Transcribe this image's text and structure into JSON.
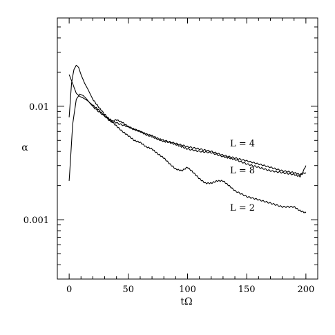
{
  "chart_data": {
    "type": "line",
    "title": "",
    "xlabel": "tΩ",
    "ylabel": "α",
    "x_scale": "linear",
    "y_scale": "log",
    "xlim": [
      -10,
      210
    ],
    "ylim": [
      0.0003,
      0.06
    ],
    "x_ticks": [
      {
        "value": 0,
        "label": "0"
      },
      {
        "value": 50,
        "label": "50"
      },
      {
        "value": 100,
        "label": "100"
      },
      {
        "value": 150,
        "label": "150"
      },
      {
        "value": 200,
        "label": "200"
      }
    ],
    "y_ticks": [
      {
        "value": 0.01,
        "label": "0.01"
      },
      {
        "value": 0.001,
        "label": "0.001"
      }
    ],
    "grid": false,
    "series": [
      {
        "name": "L = 4",
        "x": [
          0,
          3,
          6,
          9,
          12,
          15,
          18,
          22,
          26,
          30,
          34,
          38,
          42,
          46,
          50,
          55,
          60,
          65,
          70,
          75,
          80,
          90,
          100,
          110,
          120,
          130,
          140,
          150,
          160,
          170,
          180,
          190,
          195,
          200
        ],
        "y": [
          0.0022,
          0.007,
          0.0115,
          0.0128,
          0.0124,
          0.0115,
          0.0105,
          0.0095,
          0.0088,
          0.0082,
          0.0077,
          0.0073,
          0.007,
          0.0068,
          0.0066,
          0.0063,
          0.006,
          0.0057,
          0.0055,
          0.0052,
          0.005,
          0.0047,
          0.0044,
          0.0042,
          0.004,
          0.0037,
          0.0035,
          0.0033,
          0.0031,
          0.0029,
          0.0027,
          0.0026,
          0.0025,
          0.0026
        ]
      },
      {
        "name": "L = 8",
        "x": [
          0,
          3,
          6,
          9,
          12,
          15,
          20,
          25,
          30,
          35,
          40,
          45,
          50,
          55,
          60,
          65,
          70,
          75,
          80,
          85,
          90,
          95,
          100,
          110,
          120,
          130,
          135,
          140,
          150,
          160,
          170,
          180,
          190,
          195,
          198,
          200
        ],
        "y": [
          0.019,
          0.0158,
          0.013,
          0.0122,
          0.0118,
          0.0113,
          0.0102,
          0.0093,
          0.0082,
          0.0073,
          0.0076,
          0.0072,
          0.0066,
          0.0062,
          0.006,
          0.0056,
          0.0054,
          0.0051,
          0.0049,
          0.0048,
          0.0046,
          0.0044,
          0.0042,
          0.004,
          0.0039,
          0.0036,
          0.0035,
          0.0034,
          0.0031,
          0.0029,
          0.0027,
          0.0026,
          0.0025,
          0.0024,
          0.0027,
          0.003
        ]
      },
      {
        "name": "L = 2",
        "x": [
          0,
          2,
          4,
          6,
          8,
          10,
          13,
          16,
          20,
          25,
          30,
          35,
          40,
          45,
          50,
          55,
          60,
          65,
          70,
          75,
          80,
          85,
          90,
          95,
          100,
          105,
          110,
          115,
          120,
          125,
          130,
          135,
          140,
          150,
          160,
          170,
          180,
          190,
          195,
          200
        ],
        "y": [
          0.008,
          0.016,
          0.021,
          0.023,
          0.022,
          0.019,
          0.016,
          0.014,
          0.0115,
          0.0098,
          0.0085,
          0.0075,
          0.0067,
          0.006,
          0.0055,
          0.005,
          0.0048,
          0.0044,
          0.0042,
          0.0038,
          0.0035,
          0.0031,
          0.0028,
          0.0027,
          0.0029,
          0.0026,
          0.0023,
          0.0021,
          0.0021,
          0.0022,
          0.0022,
          0.002,
          0.0018,
          0.0016,
          0.0015,
          0.0014,
          0.0013,
          0.0013,
          0.0012,
          0.00115
        ]
      }
    ]
  }
}
